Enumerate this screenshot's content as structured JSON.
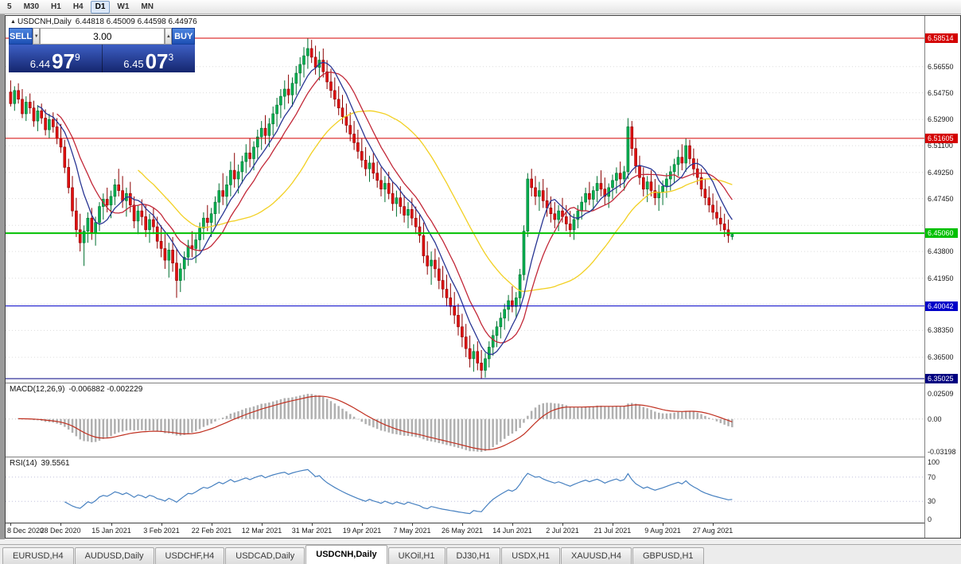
{
  "toolbar": {
    "timeframes": [
      {
        "label": "5"
      },
      {
        "label": "M30"
      },
      {
        "label": "H1"
      },
      {
        "label": "H4"
      },
      {
        "label": "D1"
      },
      {
        "label": "W1"
      },
      {
        "label": "MN"
      }
    ],
    "active": "D1"
  },
  "chart": {
    "title_symbol": "USDCNH,Daily",
    "title_ohlc": "6.44818 6.45009 6.44598 6.44976",
    "trade_widget": {
      "sell_label": "SELL",
      "buy_label": "BUY",
      "volume": "3.00",
      "sell_price_small": "6.44",
      "sell_price_big": "97",
      "sell_price_sup": "9",
      "buy_price_small": "6.45",
      "buy_price_big": "07",
      "buy_price_sup": "3"
    }
  },
  "chart_data": {
    "type": "candlestick",
    "symbol": "USDCNH",
    "timeframe": "Daily",
    "price_range": {
      "max": 6.6005,
      "min": 6.3475
    },
    "candle_colors": {
      "up": "#00b050",
      "down": "#e01010",
      "up_border": "#007030",
      "down_border": "#8c0000"
    },
    "y_axis_labels": [
      "6.56550",
      "6.54750",
      "6.52900",
      "6.51100",
      "6.49250",
      "6.47450",
      "6.43800",
      "6.41950",
      "6.38350",
      "6.36500"
    ],
    "y_gridline_prices": [
      6.5655,
      6.5475,
      6.529,
      6.511,
      6.4925,
      6.4745,
      6.456,
      6.438,
      6.4195,
      6.4015,
      6.3835,
      6.365,
      6.347
    ],
    "hlines": [
      {
        "price": 6.58514,
        "label": "6.58514",
        "color": "#d40000",
        "width": 1
      },
      {
        "price": 6.51605,
        "label": "6.51605",
        "color": "#d40000",
        "width": 1
      },
      {
        "price": 6.4506,
        "label": "6.45060",
        "color": "#00c000",
        "width": 2
      },
      {
        "price": 6.40042,
        "label": "6.40042",
        "color": "#0000c8",
        "width": 1
      },
      {
        "price": 6.35025,
        "label": "6.35025",
        "color": "#000080",
        "width": 1
      }
    ],
    "moving_averages": [
      {
        "period": 34,
        "color": "#f2d022"
      },
      {
        "period": 13,
        "color": "#c22838"
      },
      {
        "period": 8,
        "color": "#283593"
      }
    ],
    "x_labels": [
      "8 Dec 2020",
      "28 Dec 2020",
      "15 Jan 2021",
      "3 Feb 2021",
      "22 Feb 2021",
      "12 Mar 2021",
      "31 Mar 2021",
      "19 Apr 2021",
      "7 May 2021",
      "26 May 2021",
      "14 Jun 2021",
      "2 Jul 2021",
      "21 Jul 2021",
      "9 Aug 2021",
      "27 Aug 2021"
    ],
    "x_label_indices": [
      0,
      13,
      26,
      39,
      52,
      65,
      78,
      91,
      104,
      117,
      130,
      143,
      156,
      169,
      182
    ],
    "indicators": {
      "macd": {
        "label": "MACD(12,26,9)",
        "values_text": "-0.006882 -0.002229",
        "fast": 12,
        "slow": 26,
        "signal": 9,
        "scale": [
          "0.02509",
          "0.00",
          "-0.03198"
        ],
        "range": {
          "max": 0.035,
          "min": -0.037
        },
        "hist_color": "#b0b0b0",
        "signal_color": "#c03020"
      },
      "rsi": {
        "label": "RSI(14)",
        "value_text": "39.5561",
        "period": 14,
        "scale": [
          "100",
          "70",
          "30",
          "0"
        ],
        "levels": [
          70,
          30
        ],
        "color": "#4680c0",
        "level_color": "#c0c0dc"
      }
    },
    "candles": [
      [
        6.548,
        6.556,
        6.538,
        6.54
      ],
      [
        6.54,
        6.552,
        6.535,
        6.549
      ],
      [
        6.549,
        6.554,
        6.54,
        6.543
      ],
      [
        6.543,
        6.55,
        6.53,
        6.533
      ],
      [
        6.533,
        6.545,
        6.528,
        6.541
      ],
      [
        6.541,
        6.547,
        6.533,
        6.537
      ],
      [
        6.537,
        6.542,
        6.524,
        6.528
      ],
      [
        6.528,
        6.539,
        6.521,
        6.535
      ],
      [
        6.535,
        6.54,
        6.526,
        6.53
      ],
      [
        6.53,
        6.536,
        6.518,
        6.522
      ],
      [
        6.522,
        6.533,
        6.516,
        6.529
      ],
      [
        6.529,
        6.534,
        6.52,
        6.524
      ],
      [
        6.524,
        6.53,
        6.512,
        6.516
      ],
      [
        6.516,
        6.526,
        6.506,
        6.51
      ],
      [
        6.51,
        6.515,
        6.492,
        6.496
      ],
      [
        6.496,
        6.502,
        6.478,
        6.482
      ],
      [
        6.482,
        6.49,
        6.462,
        6.466
      ],
      [
        6.466,
        6.475,
        6.448,
        6.453
      ],
      [
        6.453,
        6.464,
        6.438,
        6.444
      ],
      [
        6.444,
        6.456,
        6.428,
        6.452
      ],
      [
        6.452,
        6.465,
        6.444,
        6.461
      ],
      [
        6.461,
        6.468,
        6.446,
        6.451
      ],
      [
        6.451,
        6.462,
        6.442,
        6.458
      ],
      [
        6.458,
        6.472,
        6.452,
        6.469
      ],
      [
        6.469,
        6.478,
        6.46,
        6.474
      ],
      [
        6.474,
        6.482,
        6.465,
        6.47
      ],
      [
        6.47,
        6.48,
        6.461,
        6.476
      ],
      [
        6.476,
        6.488,
        6.47,
        6.484
      ],
      [
        6.484,
        6.495,
        6.476,
        6.48
      ],
      [
        6.48,
        6.49,
        6.468,
        6.473
      ],
      [
        6.473,
        6.482,
        6.462,
        6.478
      ],
      [
        6.478,
        6.486,
        6.465,
        6.47
      ],
      [
        6.47,
        6.476,
        6.454,
        6.459
      ],
      [
        6.459,
        6.47,
        6.45,
        6.466
      ],
      [
        6.466,
        6.474,
        6.456,
        6.462
      ],
      [
        6.462,
        6.47,
        6.448,
        6.453
      ],
      [
        6.453,
        6.464,
        6.444,
        6.46
      ],
      [
        6.46,
        6.468,
        6.45,
        6.455
      ],
      [
        6.455,
        6.462,
        6.44,
        6.445
      ],
      [
        6.445,
        6.456,
        6.434,
        6.44
      ],
      [
        6.44,
        6.45,
        6.426,
        6.432
      ],
      [
        6.432,
        6.444,
        6.42,
        6.439
      ],
      [
        6.439,
        6.448,
        6.424,
        6.43
      ],
      [
        6.43,
        6.44,
        6.406,
        6.418
      ],
      [
        6.418,
        6.43,
        6.41,
        6.426
      ],
      [
        6.426,
        6.438,
        6.418,
        6.434
      ],
      [
        6.434,
        6.446,
        6.428,
        6.442
      ],
      [
        6.442,
        6.452,
        6.434,
        6.44
      ],
      [
        6.44,
        6.45,
        6.43,
        6.446
      ],
      [
        6.446,
        6.458,
        6.438,
        6.454
      ],
      [
        6.454,
        6.465,
        6.446,
        6.461
      ],
      [
        6.461,
        6.47,
        6.452,
        6.458
      ],
      [
        6.458,
        6.468,
        6.448,
        6.464
      ],
      [
        6.464,
        6.476,
        6.456,
        6.472
      ],
      [
        6.472,
        6.485,
        6.464,
        6.48
      ],
      [
        6.48,
        6.492,
        6.47,
        6.476
      ],
      [
        6.476,
        6.49,
        6.468,
        6.484
      ],
      [
        6.484,
        6.5,
        6.476,
        6.494
      ],
      [
        6.494,
        6.506,
        6.482,
        6.488
      ],
      [
        6.488,
        6.498,
        6.478,
        6.493
      ],
      [
        6.493,
        6.504,
        6.485,
        6.5
      ],
      [
        6.5,
        6.512,
        6.492,
        6.506
      ],
      [
        6.506,
        6.516,
        6.496,
        6.502
      ],
      [
        6.502,
        6.514,
        6.494,
        6.51
      ],
      [
        6.51,
        6.522,
        6.502,
        6.517
      ],
      [
        6.517,
        6.528,
        6.508,
        6.523
      ],
      [
        6.523,
        6.532,
        6.512,
        6.518
      ],
      [
        6.518,
        6.53,
        6.51,
        6.526
      ],
      [
        6.526,
        6.538,
        6.518,
        6.533
      ],
      [
        6.533,
        6.544,
        6.524,
        6.539
      ],
      [
        6.539,
        6.55,
        6.53,
        6.545
      ],
      [
        6.545,
        6.556,
        6.536,
        6.55
      ],
      [
        6.55,
        6.56,
        6.54,
        6.546
      ],
      [
        6.546,
        6.558,
        6.538,
        6.554
      ],
      [
        6.554,
        6.566,
        6.546,
        6.561
      ],
      [
        6.561,
        6.572,
        6.552,
        6.567
      ],
      [
        6.567,
        6.579,
        6.558,
        6.573
      ],
      [
        6.573,
        6.5851,
        6.564,
        6.578
      ],
      [
        6.578,
        6.584,
        6.568,
        6.572
      ],
      [
        6.572,
        6.58,
        6.56,
        6.565
      ],
      [
        6.565,
        6.576,
        6.556,
        6.57
      ],
      [
        6.57,
        6.578,
        6.558,
        6.562
      ],
      [
        6.562,
        6.57,
        6.55,
        6.555
      ],
      [
        6.555,
        6.564,
        6.544,
        6.549
      ],
      [
        6.549,
        6.558,
        6.538,
        6.543
      ],
      [
        6.543,
        6.552,
        6.532,
        6.537
      ],
      [
        6.537,
        6.546,
        6.526,
        6.531
      ],
      [
        6.531,
        6.54,
        6.52,
        6.525
      ],
      [
        6.525,
        6.534,
        6.514,
        6.519
      ],
      [
        6.519,
        6.528,
        6.508,
        6.513
      ],
      [
        6.513,
        6.522,
        6.502,
        6.507
      ],
      [
        6.507,
        6.516,
        6.496,
        6.501
      ],
      [
        6.501,
        6.51,
        6.49,
        6.495
      ],
      [
        6.495,
        6.504,
        6.486,
        6.499
      ],
      [
        6.499,
        6.506,
        6.488,
        6.492
      ],
      [
        6.492,
        6.5,
        6.482,
        6.487
      ],
      [
        6.487,
        6.496,
        6.476,
        6.481
      ],
      [
        6.481,
        6.49,
        6.472,
        6.485
      ],
      [
        6.485,
        6.493,
        6.474,
        6.478
      ],
      [
        6.478,
        6.486,
        6.466,
        6.471
      ],
      [
        6.471,
        6.48,
        6.462,
        6.475
      ],
      [
        6.475,
        6.483,
        6.464,
        6.469
      ],
      [
        6.469,
        6.477,
        6.458,
        6.463
      ],
      [
        6.463,
        6.472,
        6.454,
        6.467
      ],
      [
        6.467,
        6.475,
        6.456,
        6.461
      ],
      [
        6.461,
        6.469,
        6.45,
        6.455
      ],
      [
        6.455,
        6.464,
        6.444,
        6.449
      ],
      [
        6.449,
        6.458,
        6.43,
        6.435
      ],
      [
        6.435,
        6.445,
        6.422,
        6.428
      ],
      [
        6.428,
        6.438,
        6.415,
        6.432
      ],
      [
        6.432,
        6.44,
        6.42,
        6.426
      ],
      [
        6.426,
        6.434,
        6.412,
        6.418
      ],
      [
        6.418,
        6.428,
        6.406,
        6.412
      ],
      [
        6.412,
        6.422,
        6.4,
        6.406
      ],
      [
        6.406,
        6.416,
        6.394,
        6.4
      ],
      [
        6.4,
        6.41,
        6.388,
        6.394
      ],
      [
        6.394,
        6.402,
        6.38,
        6.386
      ],
      [
        6.386,
        6.395,
        6.372,
        6.379
      ],
      [
        6.379,
        6.388,
        6.365,
        6.371
      ],
      [
        6.371,
        6.38,
        6.358,
        6.364
      ],
      [
        6.364,
        6.374,
        6.355,
        6.369
      ],
      [
        6.369,
        6.376,
        6.356,
        6.361
      ],
      [
        6.361,
        6.37,
        6.3502,
        6.356
      ],
      [
        6.356,
        6.368,
        6.351,
        6.364
      ],
      [
        6.364,
        6.376,
        6.358,
        6.372
      ],
      [
        6.372,
        6.384,
        6.366,
        6.38
      ],
      [
        6.38,
        6.39,
        6.372,
        6.386
      ],
      [
        6.386,
        6.396,
        6.378,
        6.392
      ],
      [
        6.392,
        6.402,
        6.384,
        6.398
      ],
      [
        6.398,
        6.408,
        6.39,
        6.404
      ],
      [
        6.404,
        6.414,
        6.396,
        6.4
      ],
      [
        6.4,
        6.41,
        6.392,
        6.406
      ],
      [
        6.406,
        6.426,
        6.4,
        6.422
      ],
      [
        6.422,
        6.456,
        6.418,
        6.452
      ],
      [
        6.452,
        6.492,
        6.448,
        6.488
      ],
      [
        6.488,
        6.495,
        6.476,
        6.482
      ],
      [
        6.482,
        6.49,
        6.47,
        6.476
      ],
      [
        6.476,
        6.486,
        6.466,
        6.48
      ],
      [
        6.48,
        6.488,
        6.468,
        6.473
      ],
      [
        6.473,
        6.482,
        6.462,
        6.468
      ],
      [
        6.468,
        6.476,
        6.458,
        6.464
      ],
      [
        6.464,
        6.472,
        6.454,
        6.46
      ],
      [
        6.46,
        6.47,
        6.452,
        6.466
      ],
      [
        6.466,
        6.475,
        6.458,
        6.462
      ],
      [
        6.462,
        6.47,
        6.452,
        6.457
      ],
      [
        6.457,
        6.466,
        6.448,
        6.453
      ],
      [
        6.453,
        6.464,
        6.446,
        6.46
      ],
      [
        6.46,
        6.47,
        6.454,
        6.466
      ],
      [
        6.466,
        6.476,
        6.46,
        6.472
      ],
      [
        6.472,
        6.482,
        6.466,
        6.478
      ],
      [
        6.478,
        6.486,
        6.47,
        6.474
      ],
      [
        6.474,
        6.483,
        6.466,
        6.48
      ],
      [
        6.48,
        6.49,
        6.472,
        6.485
      ],
      [
        6.485,
        6.494,
        6.476,
        6.481
      ],
      [
        6.481,
        6.489,
        6.47,
        6.476
      ],
      [
        6.476,
        6.485,
        6.468,
        6.482
      ],
      [
        6.482,
        6.491,
        6.474,
        6.487
      ],
      [
        6.487,
        6.496,
        6.478,
        6.492
      ],
      [
        6.492,
        6.5,
        6.482,
        6.488
      ],
      [
        6.488,
        6.497,
        6.48,
        6.493
      ],
      [
        6.493,
        6.53,
        6.488,
        6.524
      ],
      [
        6.524,
        6.528,
        6.504,
        6.509
      ],
      [
        6.509,
        6.516,
        6.492,
        6.497
      ],
      [
        6.497,
        6.504,
        6.484,
        6.489
      ],
      [
        6.489,
        6.496,
        6.476,
        6.481
      ],
      [
        6.481,
        6.49,
        6.472,
        6.486
      ],
      [
        6.486,
        6.494,
        6.476,
        6.48
      ],
      [
        6.48,
        6.488,
        6.47,
        6.475
      ],
      [
        6.475,
        6.484,
        6.466,
        6.479
      ],
      [
        6.479,
        6.487,
        6.47,
        6.483
      ],
      [
        6.483,
        6.492,
        6.475,
        6.488
      ],
      [
        6.488,
        6.497,
        6.48,
        6.493
      ],
      [
        6.493,
        6.502,
        6.485,
        6.498
      ],
      [
        6.498,
        6.508,
        6.49,
        6.503
      ],
      [
        6.503,
        6.512,
        6.494,
        6.499
      ],
      [
        6.499,
        6.516,
        6.493,
        6.511
      ],
      [
        6.511,
        6.515,
        6.498,
        6.502
      ],
      [
        6.502,
        6.509,
        6.49,
        6.495
      ],
      [
        6.495,
        6.502,
        6.484,
        6.489
      ],
      [
        6.489,
        6.495,
        6.476,
        6.481
      ],
      [
        6.481,
        6.488,
        6.47,
        6.475
      ],
      [
        6.475,
        6.483,
        6.465,
        6.47
      ],
      [
        6.47,
        6.478,
        6.46,
        6.465
      ],
      [
        6.465,
        6.473,
        6.456,
        6.461
      ],
      [
        6.461,
        6.469,
        6.452,
        6.457
      ],
      [
        6.457,
        6.464,
        6.448,
        6.453
      ],
      [
        6.453,
        6.46,
        6.444,
        6.449
      ],
      [
        6.4482,
        6.4501,
        6.446,
        6.4498
      ]
    ]
  },
  "tabs": [
    {
      "label": "EURUSD,H4"
    },
    {
      "label": "AUDUSD,Daily"
    },
    {
      "label": "USDCHF,H4"
    },
    {
      "label": "USDCAD,Daily"
    },
    {
      "label": "USDCNH,Daily",
      "active": true
    },
    {
      "label": "UKOil,H1"
    },
    {
      "label": "DJ30,H1"
    },
    {
      "label": "USDX,H1"
    },
    {
      "label": "XAUUSD,H4"
    },
    {
      "label": "GBPUSD,H1"
    }
  ]
}
